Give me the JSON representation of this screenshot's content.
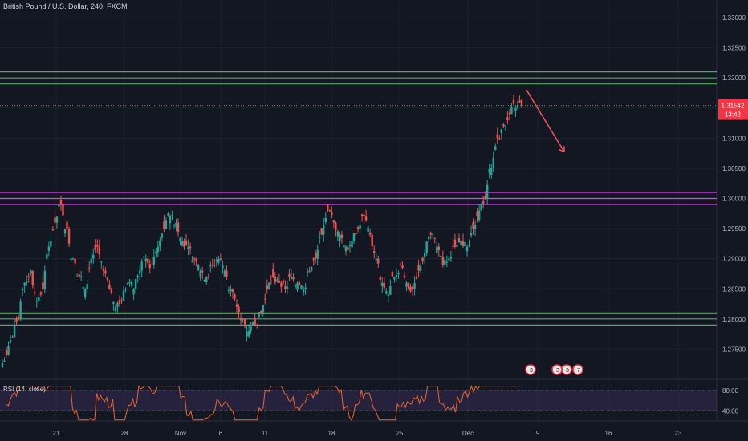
{
  "header": {
    "symbol_title": "British Pound / U.S. Dollar, 240, FXCM"
  },
  "price_badge": {
    "price": "1.31542",
    "countdown": "13:42",
    "color": "#f23645"
  },
  "colors": {
    "background": "#131722",
    "grid": "#1e222d",
    "up": "#26a69a",
    "down": "#ef5350",
    "support_resistance": "#4caf50",
    "pivot_zone": "#e040fb",
    "arrow": "#f7525f",
    "rsi_line": "#e9662c",
    "rsi_band": "#7e57c2"
  },
  "rsi": {
    "title": "RSI (14, close)",
    "upper_label": "80.00",
    "lower_label": "40.00"
  },
  "events": [
    "3",
    "3",
    "3",
    "7"
  ],
  "chart_data": {
    "type": "candlestick",
    "title": "British Pound / U.S. Dollar, 240, FXCM",
    "ylim": [
      1.27,
      1.33
    ],
    "yticks": [
      "1.33000",
      "1.32500",
      "1.32000",
      "1.31500",
      "1.31000",
      "1.30500",
      "1.30000",
      "1.29500",
      "1.29000",
      "1.28500",
      "1.28000",
      "1.27500"
    ],
    "xticks": [
      "21",
      "28",
      "Nov",
      "6",
      "11",
      "18",
      "25",
      "Dec",
      "9",
      "16",
      "23"
    ],
    "last_price": 1.31542,
    "horizontal_levels": [
      {
        "price": 1.321,
        "color": "green"
      },
      {
        "price": 1.32,
        "color": "green"
      },
      {
        "price": 1.319,
        "color": "green"
      },
      {
        "price": 1.301,
        "color": "magenta"
      },
      {
        "price": 1.3,
        "color": "magenta"
      },
      {
        "price": 1.299,
        "color": "magenta"
      },
      {
        "price": 1.281,
        "color": "green"
      },
      {
        "price": 1.28,
        "color": "green"
      },
      {
        "price": 1.279,
        "color": "green"
      }
    ],
    "close_path": [
      1.274,
      1.277,
      1.28,
      1.286,
      1.288,
      1.283,
      1.285,
      1.292,
      1.296,
      1.299,
      1.295,
      1.29,
      1.287,
      1.285,
      1.29,
      1.292,
      1.288,
      1.285,
      1.282,
      1.283,
      1.286,
      1.285,
      1.288,
      1.29,
      1.289,
      1.292,
      1.295,
      1.297,
      1.296,
      1.293,
      1.292,
      1.29,
      1.288,
      1.287,
      1.289,
      1.29,
      1.288,
      1.285,
      1.282,
      1.28,
      1.278,
      1.279,
      1.281,
      1.285,
      1.287,
      1.286,
      1.285,
      1.287,
      1.286,
      1.285,
      1.288,
      1.29,
      1.294,
      1.298,
      1.296,
      1.294,
      1.292,
      1.293,
      1.295,
      1.297,
      1.294,
      1.29,
      1.286,
      1.284,
      1.287,
      1.289,
      1.286,
      1.285,
      1.288,
      1.291,
      1.294,
      1.292,
      1.289,
      1.29,
      1.292,
      1.293,
      1.292,
      1.295,
      1.298,
      1.3,
      1.305,
      1.31,
      1.312,
      1.314,
      1.315,
      1.3154
    ],
    "arrow": {
      "from": {
        "date_index": 87,
        "price": 1.318
      },
      "to": {
        "date_index": 92,
        "price": 1.308
      }
    }
  }
}
